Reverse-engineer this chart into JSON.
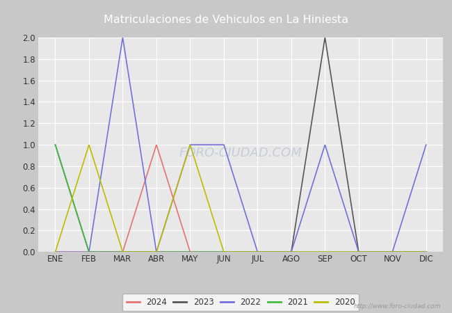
{
  "title": "Matriculaciones de Vehiculos en La Hiniesta",
  "title_bg_color": "#5b7fc4",
  "title_text_color": "#ffffff",
  "months": [
    "ENE",
    "FEB",
    "MAR",
    "ABR",
    "MAY",
    "JUN",
    "JUL",
    "AGO",
    "SEP",
    "OCT",
    "NOV",
    "DIC"
  ],
  "series": {
    "2024": {
      "color": "#e87070",
      "values": [
        0,
        0,
        0,
        1,
        0,
        null,
        null,
        null,
        null,
        null,
        null,
        null
      ]
    },
    "2023": {
      "color": "#555555",
      "values": [
        1,
        0,
        0,
        0,
        0,
        0,
        0,
        0,
        2,
        0,
        0,
        0
      ]
    },
    "2022": {
      "color": "#7070dd",
      "values": [
        0,
        0,
        2,
        0,
        1,
        1,
        0,
        0,
        1,
        0,
        0,
        1
      ]
    },
    "2021": {
      "color": "#44bb44",
      "values": [
        1,
        0,
        0,
        0,
        0,
        0,
        0,
        0,
        0,
        0,
        0,
        0
      ]
    },
    "2020": {
      "color": "#bbbb00",
      "values": [
        0,
        1,
        0,
        0,
        1,
        0,
        0,
        0,
        0,
        0,
        0,
        0
      ]
    }
  },
  "ylim": [
    0.0,
    2.0
  ],
  "yticks": [
    0.0,
    0.2,
    0.4,
    0.6,
    0.8,
    1.0,
    1.2,
    1.4,
    1.6,
    1.8,
    2.0
  ],
  "outer_bg_color": "#c8c8c8",
  "plot_bg_color": "#e8e8e8",
  "grid_color": "#ffffff",
  "watermark": "http://www.foro-ciudad.com",
  "legend_order": [
    "2024",
    "2023",
    "2022",
    "2021",
    "2020"
  ]
}
